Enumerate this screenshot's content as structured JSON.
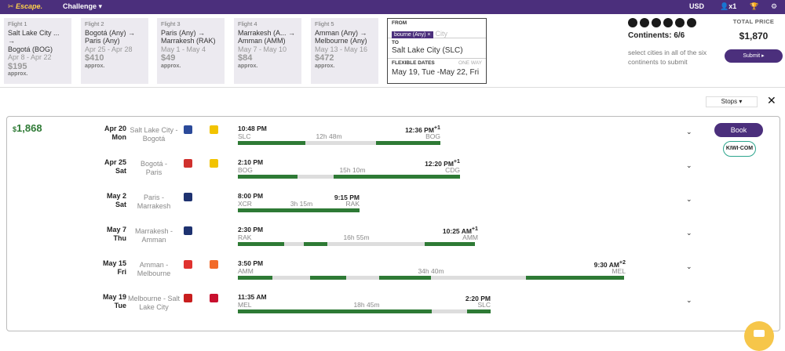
{
  "topbar": {
    "logo": "✂ Escape.",
    "challenge": "Challenge ▾",
    "currency": "USD",
    "travelers": "x1"
  },
  "flights": [
    {
      "label": "Flight 1",
      "route1": "Salt Lake City ... →",
      "route2": "Bogotá (BOG)",
      "dates": "Apr 8 - Apr 22",
      "price": "$195",
      "approx": "approx."
    },
    {
      "label": "Flight 2",
      "route1": "Bogotá (Any) →",
      "route2": "Paris (Any)",
      "dates": "Apr 25 - Apr 28",
      "price": "$410",
      "approx": "approx."
    },
    {
      "label": "Flight 3",
      "route1": "Paris (Any) →",
      "route2": "Marrakesh (RAK)",
      "dates": "May 1 - May 4",
      "price": "$49",
      "approx": "approx."
    },
    {
      "label": "Flight 4",
      "route1": "Marrakesh (A... →",
      "route2": "Amman (AMM)",
      "dates": "May 7 - May 10",
      "price": "$84",
      "approx": "approx."
    },
    {
      "label": "Flight 5",
      "route1": "Amman (Any) →",
      "route2": "Melbourne (Any)",
      "dates": "May 13 - May 16",
      "price": "$472",
      "approx": "approx."
    }
  ],
  "form": {
    "from_label": "FROM",
    "from_chip": "bourne (Any) ×",
    "from_placeholder": "City",
    "to_label": "TO",
    "to_value": "Salt Lake City (SLC)",
    "flex_label": "FLEXIBLE DATES",
    "oneway": "ONE WAY",
    "flex_value": "May 19, Tue -May 22, Fri"
  },
  "continents": {
    "title": "Continents: 6/6",
    "desc": "select cities in all of the six continents to submit"
  },
  "total": {
    "label": "TOTAL PRICE",
    "value": "$1,870",
    "submit": "Submit ▸"
  },
  "stops_label": "Stops ▾",
  "result": {
    "price_symbol": "$",
    "price": "1,868",
    "book": "Book",
    "provider": "KIWI·COM",
    "legs": [
      {
        "date1": "Apr 20",
        "date2": "Mon",
        "route1": "Salt Lake City -",
        "route2": "Bogotá",
        "dep": "10:48 PM",
        "dep_ap": "SLC",
        "arr": "12:36 PM",
        "arr_sup": "+1",
        "arr_ap": "BOG",
        "duration": "12h 48m",
        "logo1": "#2b4a9a",
        "logo2": "#f2c300"
      },
      {
        "date1": "Apr 25",
        "date2": "Sat",
        "route1": "Bogotá -",
        "route2": "Paris",
        "dep": "2:10 PM",
        "dep_ap": "BOG",
        "arr": "12:20 PM",
        "arr_sup": "+1",
        "arr_ap": "CDG",
        "duration": "15h 10m",
        "logo1": "#f2c300",
        "logo2": "#d0312d"
      },
      {
        "date1": "May 2",
        "date2": "Sat",
        "route1": "Paris -",
        "route2": "Marrakesh",
        "dep": "8:00 PM",
        "dep_ap": "XCR",
        "arr": "9:15 PM",
        "arr_sup": "",
        "arr_ap": "RAK",
        "duration": "3h 15m",
        "logo1": "#1e3270",
        "logo2": ""
      },
      {
        "date1": "May 7",
        "date2": "Thu",
        "route1": "Marrakesh -",
        "route2": "Amman",
        "dep": "2:30 PM",
        "dep_ap": "RAK",
        "arr": "10:25 AM",
        "arr_sup": "+1",
        "arr_ap": "AMM",
        "duration": "16h 55m",
        "logo1": "#1e3270",
        "logo2": ""
      },
      {
        "date1": "May 15",
        "date2": "Fri",
        "route1": "Amman -",
        "route2": "Melbourne",
        "dep": "3:50 PM",
        "dep_ap": "AMM",
        "arr": "9:30 AM",
        "arr_sup": "+2",
        "arr_ap": "MEL",
        "duration": "34h 40m",
        "logo1": "#e0322f",
        "logo2": "#f26b2a"
      },
      {
        "date1": "May 19",
        "date2": "Tue",
        "route1": "Melbourne - Salt",
        "route2": "Lake City",
        "dep": "11:35 AM",
        "dep_ap": "MEL",
        "arr": "2:20 PM",
        "arr_sup": "",
        "arr_ap": "SLC",
        "duration": "18h 45m",
        "logo1": "#c81e1e",
        "logo2": "#c8102e"
      }
    ]
  }
}
